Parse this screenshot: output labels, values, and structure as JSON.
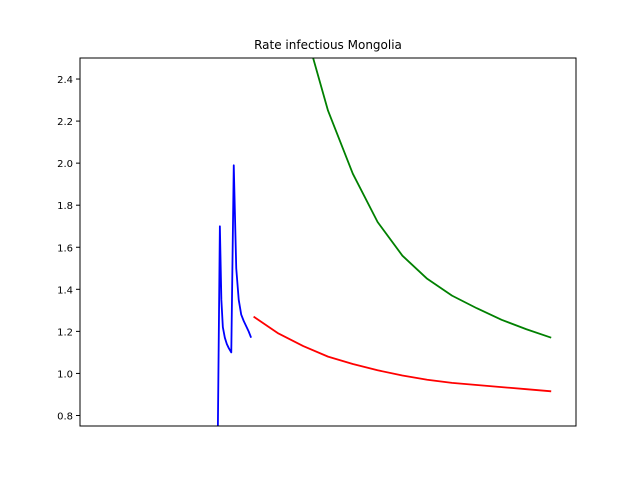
{
  "chart_data": {
    "type": "line",
    "title": "Rate infectious Mongolia",
    "xlabel": "",
    "ylabel": "",
    "xlim": [
      0,
      100
    ],
    "ylim": [
      0.75,
      2.5
    ],
    "yticks": [
      "0.8",
      "1.0",
      "1.2",
      "1.4",
      "1.6",
      "1.8",
      "2.0",
      "2.2",
      "2.4"
    ],
    "grid": false,
    "series": [
      {
        "color": "#0000ff",
        "x": [
          27.8,
          28.2,
          28.5,
          28.8,
          29.2,
          29.6,
          30.0,
          30.5,
          31.0,
          31.5,
          32.0,
          32.5,
          33.0,
          34.0,
          34.5
        ],
        "y": [
          0.75,
          1.7,
          1.35,
          1.22,
          1.17,
          1.14,
          1.12,
          1.1,
          1.99,
          1.5,
          1.35,
          1.28,
          1.25,
          1.2,
          1.17
        ]
      },
      {
        "color": "#ff0000",
        "x": [
          35.0,
          40,
          45,
          50,
          55,
          60,
          65,
          70,
          75,
          80,
          85,
          90,
          95
        ],
        "y": [
          1.27,
          1.19,
          1.13,
          1.08,
          1.045,
          1.015,
          0.99,
          0.97,
          0.955,
          0.945,
          0.935,
          0.925,
          0.915
        ]
      },
      {
        "color": "#008000",
        "x": [
          47.0,
          50,
          55,
          60,
          65,
          70,
          75,
          80,
          85,
          90,
          95
        ],
        "y": [
          2.5,
          2.25,
          1.95,
          1.72,
          1.56,
          1.45,
          1.37,
          1.31,
          1.255,
          1.21,
          1.17
        ]
      }
    ]
  }
}
